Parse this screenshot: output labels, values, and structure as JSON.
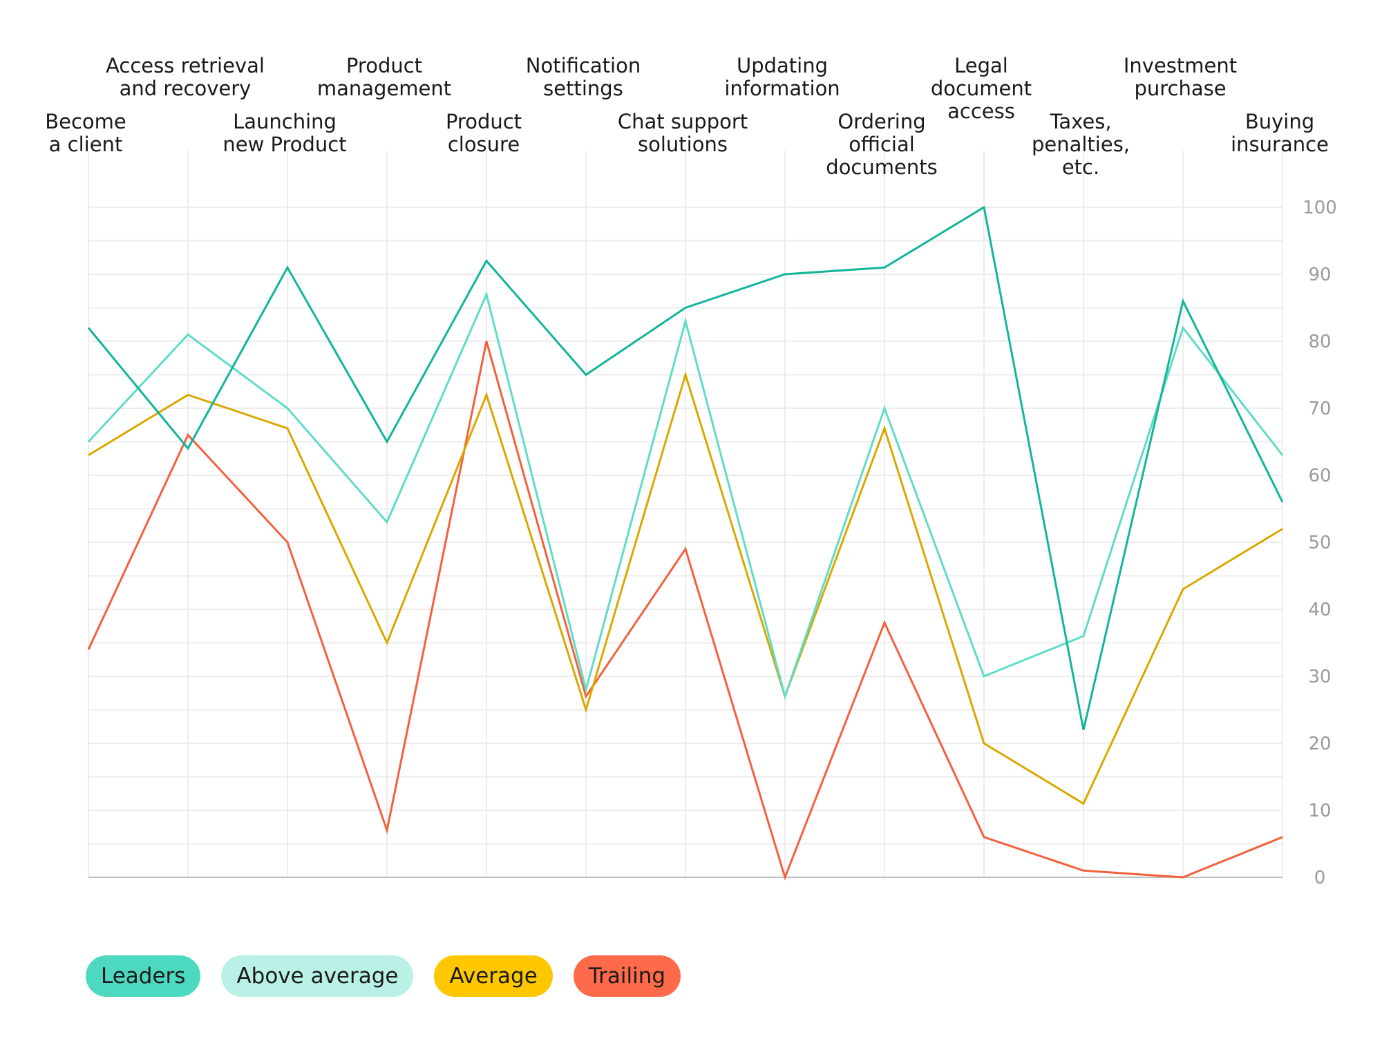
{
  "chart_data": {
    "type": "line",
    "title": "",
    "xlabel": "",
    "ylabel": "",
    "ylim": [
      0,
      100
    ],
    "yticks": [
      0,
      10,
      20,
      30,
      40,
      50,
      60,
      70,
      80,
      90,
      100
    ],
    "y_axis_side": "right",
    "grid": true,
    "legend_position": "bottom-left",
    "categories": [
      [
        "Become",
        "a client"
      ],
      [
        "Access retrieval",
        "and recovery"
      ],
      [
        "Launching",
        "new Product"
      ],
      [
        "Product",
        "management"
      ],
      [
        "Product",
        "closure"
      ],
      [
        "Notification",
        "settings"
      ],
      [
        "Chat support",
        "solutions"
      ],
      [
        "Updating",
        "information"
      ],
      [
        "Ordering",
        "official",
        "documents"
      ],
      [
        "Legal",
        "document",
        "access"
      ],
      [
        "Taxes,",
        "penalties,",
        "etc."
      ],
      [
        "Investment",
        "purchase"
      ],
      [
        "Buying",
        "insurance"
      ]
    ],
    "series": [
      {
        "name": "Leaders",
        "color": "#12b59a",
        "legend_color": "#4dd9c0",
        "values": [
          82,
          64,
          91,
          65,
          92,
          75,
          85,
          90,
          91,
          100,
          22,
          86,
          56
        ]
      },
      {
        "name": "Above average",
        "color": "#5fdcc8",
        "legend_color": "#b9f1e7",
        "values": [
          65,
          81,
          70,
          53,
          87,
          28,
          83,
          27,
          70,
          30,
          36,
          82,
          63
        ]
      },
      {
        "name": "Average",
        "color": "#d9a800",
        "legend_color": "#ffc700",
        "values": [
          63,
          72,
          67,
          35,
          72,
          25,
          75,
          27,
          67,
          20,
          11,
          43,
          52
        ]
      },
      {
        "name": "Trailing",
        "color": "#f5603c",
        "legend_color": "#ff6b4a",
        "values": [
          34,
          66,
          50,
          7,
          80,
          27,
          49,
          0,
          38,
          6,
          1,
          0,
          6
        ]
      }
    ]
  }
}
